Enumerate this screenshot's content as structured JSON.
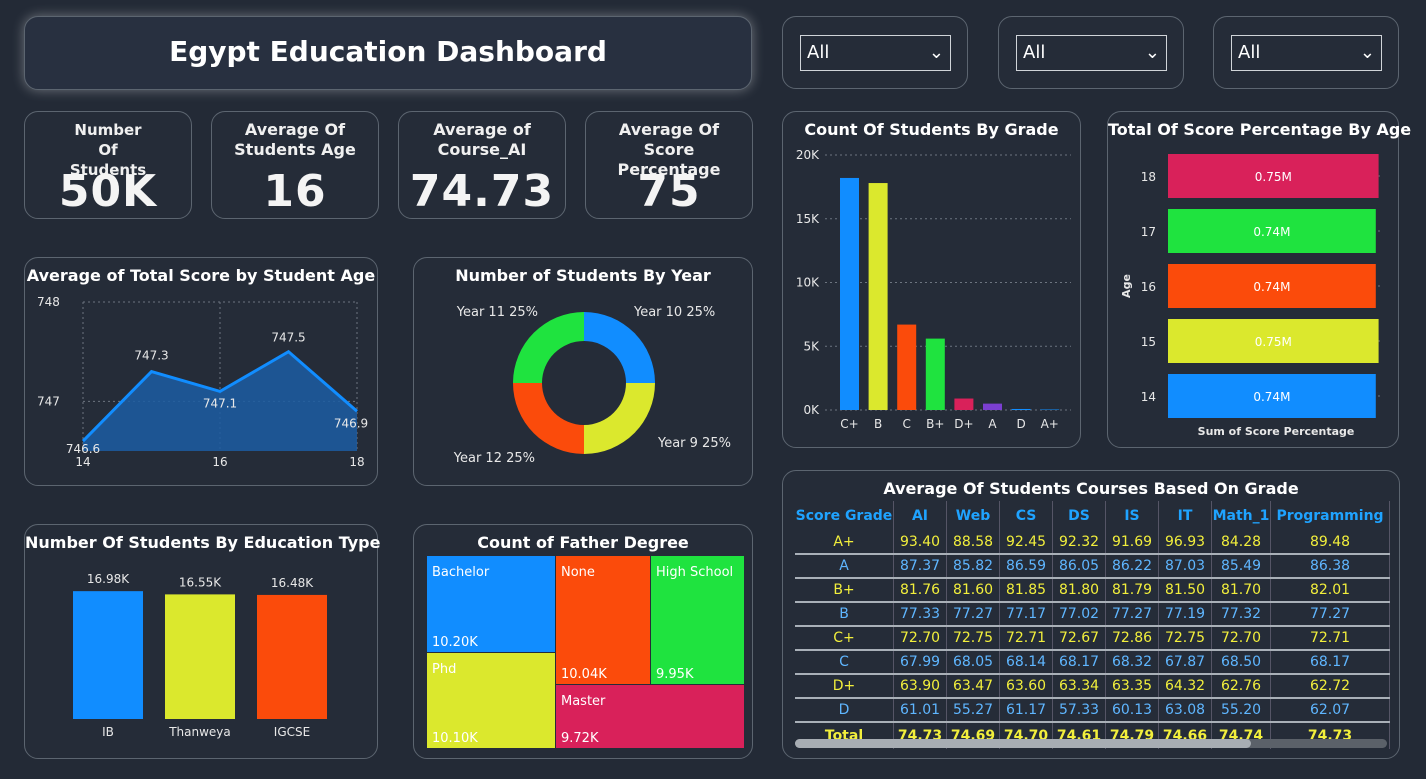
{
  "header": {
    "title": "Egypt Education Dashboard"
  },
  "slicers": [
    {
      "value": "All"
    },
    {
      "value": "All"
    },
    {
      "value": "All"
    }
  ],
  "kpis": [
    {
      "label": "Number Of Students",
      "value": "50K"
    },
    {
      "label": "Average Of Students Age",
      "value": "16"
    },
    {
      "label": "Average of Course_AI",
      "value": "74.73"
    },
    {
      "label": "Average Of Score Percentage",
      "value": "75"
    }
  ],
  "colors": {
    "blue": "#118dff",
    "yellow": "#dbe82d",
    "orange": "#fb4b0b",
    "green": "#1fe33f",
    "pink": "#d9215a",
    "purple": "#7b3fd1",
    "accent": "#1fa3ff"
  },
  "chart_data": [
    {
      "type": "area",
      "title": "Average of Total Score by Student Age",
      "x": [
        14,
        15,
        16,
        17,
        18
      ],
      "values": [
        746.6,
        747.3,
        747.1,
        747.5,
        746.9
      ],
      "data_labels": [
        "746.6",
        "747.3",
        "747.1",
        "747.5",
        "746.9"
      ],
      "x_ticks": [
        "14",
        "16",
        "18"
      ],
      "y_ticks": [
        "748",
        "747"
      ],
      "ylim": [
        746.5,
        748
      ],
      "grid": true
    },
    {
      "type": "pie",
      "title": "Number of Students By Year",
      "labels": [
        "Year 10 25%",
        "Year 9 25%",
        "Year 12 25%",
        "Year 11 25%"
      ],
      "categories": [
        "Year 10",
        "Year 9",
        "Year 12",
        "Year 11"
      ],
      "values": [
        25,
        25,
        25,
        25
      ]
    },
    {
      "type": "bar",
      "title": "Number Of Students By Education Type",
      "categories": [
        "IB",
        "Thanweya",
        "IGCSE"
      ],
      "values": [
        16.98,
        16.55,
        16.48
      ],
      "data_labels": [
        "16.98K",
        "16.55K",
        "16.48K"
      ]
    },
    {
      "type": "heatmap",
      "title": "Count of Father Degree",
      "categories": [
        "Bachelor",
        "Phd",
        "None",
        "High School",
        "Master"
      ],
      "values": [
        10.2,
        10.1,
        10.04,
        9.95,
        9.72
      ],
      "data_labels": [
        "10.20K",
        "10.10K",
        "10.04K",
        "9.95K",
        "9.72K"
      ]
    },
    {
      "type": "bar",
      "title": "Count Of Students By Grade",
      "categories": [
        "C+",
        "B",
        "C",
        "B+",
        "D+",
        "A",
        "D",
        "A+"
      ],
      "values": [
        18200,
        17800,
        6700,
        5600,
        900,
        500,
        80,
        40
      ],
      "y_ticks": [
        "20K",
        "15K",
        "10K",
        "5K",
        "0K"
      ],
      "ylim": [
        0,
        20000
      ],
      "grid": true
    },
    {
      "type": "bar",
      "title": "Total Of Score Percentage By Age",
      "categories": [
        "18",
        "17",
        "16",
        "15",
        "14"
      ],
      "values": [
        0.75,
        0.74,
        0.74,
        0.75,
        0.74
      ],
      "data_labels": [
        "0.75M",
        "0.74M",
        "0.74M",
        "0.75M",
        "0.74M"
      ],
      "xlabel": "Sum of Score Percentage",
      "ylabel": "Age"
    },
    {
      "type": "table",
      "title": "Average Of Students Courses Based On Grade",
      "columns": [
        "Score Grade",
        "AI",
        "Web",
        "CS",
        "DS",
        "IS",
        "IT",
        "Math_1",
        "Programming"
      ],
      "rows": [
        [
          "A+",
          "93.40",
          "88.58",
          "92.45",
          "92.32",
          "91.69",
          "96.93",
          "84.28",
          "89.48"
        ],
        [
          "A",
          "87.37",
          "85.82",
          "86.59",
          "86.05",
          "86.22",
          "87.03",
          "85.49",
          "86.38"
        ],
        [
          "B+",
          "81.76",
          "81.60",
          "81.85",
          "81.80",
          "81.79",
          "81.50",
          "81.70",
          "82.01"
        ],
        [
          "B",
          "77.33",
          "77.27",
          "77.17",
          "77.02",
          "77.27",
          "77.19",
          "77.32",
          "77.27"
        ],
        [
          "C+",
          "72.70",
          "72.75",
          "72.71",
          "72.67",
          "72.86",
          "72.75",
          "72.70",
          "72.71"
        ],
        [
          "C",
          "67.99",
          "68.05",
          "68.14",
          "68.17",
          "68.32",
          "67.87",
          "68.50",
          "68.17"
        ],
        [
          "D+",
          "63.90",
          "63.47",
          "63.60",
          "63.34",
          "63.35",
          "64.32",
          "62.76",
          "62.72"
        ],
        [
          "D",
          "61.01",
          "55.27",
          "61.17",
          "57.33",
          "60.13",
          "63.08",
          "55.20",
          "62.07"
        ]
      ],
      "total": [
        "Total",
        "74.73",
        "74.69",
        "74.70",
        "74.61",
        "74.79",
        "74.66",
        "74.74",
        "74.73"
      ]
    }
  ]
}
